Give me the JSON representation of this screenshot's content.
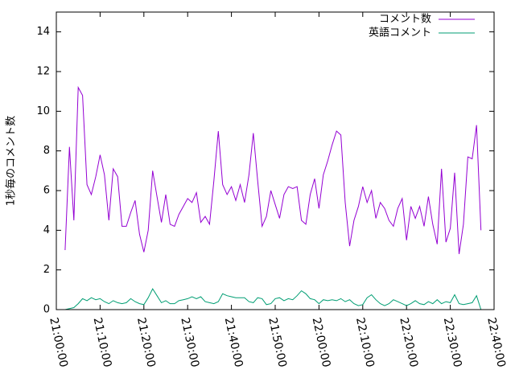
{
  "chart_data": {
    "type": "line",
    "ylabel": "1秒毎のコメント数",
    "x": [
      "21:02:00",
      "21:03:00",
      "21:04:00",
      "21:05:00",
      "21:06:00",
      "21:07:00",
      "21:08:00",
      "21:09:00",
      "21:10:00",
      "21:11:00",
      "21:12:00",
      "21:13:00",
      "21:14:00",
      "21:15:00",
      "21:16:00",
      "21:17:00",
      "21:18:00",
      "21:19:00",
      "21:20:00",
      "21:21:00",
      "21:22:00",
      "21:23:00",
      "21:24:00",
      "21:25:00",
      "21:26:00",
      "21:27:00",
      "21:28:00",
      "21:29:00",
      "21:30:00",
      "21:31:00",
      "21:32:00",
      "21:33:00",
      "21:34:00",
      "21:35:00",
      "21:36:00",
      "21:37:00",
      "21:38:00",
      "21:39:00",
      "21:40:00",
      "21:41:00",
      "21:42:00",
      "21:43:00",
      "21:44:00",
      "21:45:00",
      "21:46:00",
      "21:47:00",
      "21:48:00",
      "21:49:00",
      "21:50:00",
      "21:51:00",
      "21:52:00",
      "21:53:00",
      "21:54:00",
      "21:55:00",
      "21:56:00",
      "21:57:00",
      "21:58:00",
      "21:59:00",
      "22:00:00",
      "22:01:00",
      "22:02:00",
      "22:03:00",
      "22:04:00",
      "22:05:00",
      "22:06:00",
      "22:07:00",
      "22:08:00",
      "22:09:00",
      "22:10:00",
      "22:11:00",
      "22:12:00",
      "22:13:00",
      "22:14:00",
      "22:15:00",
      "22:16:00",
      "22:17:00",
      "22:18:00",
      "22:19:00",
      "22:20:00",
      "22:21:00",
      "22:22:00",
      "22:23:00",
      "22:24:00",
      "22:25:00",
      "22:26:00",
      "22:27:00",
      "22:28:00",
      "22:29:00",
      "22:30:00",
      "22:31:00",
      "22:32:00",
      "22:33:00",
      "22:34:00",
      "22:35:00",
      "22:36:00",
      "22:37:00"
    ],
    "series": [
      {
        "name": "コメント数",
        "color": "#9400d3",
        "values": [
          3.0,
          8.2,
          4.5,
          11.2,
          10.8,
          6.3,
          5.8,
          6.7,
          7.8,
          6.8,
          4.5,
          7.1,
          6.7,
          4.2,
          4.2,
          4.9,
          5.5,
          3.8,
          2.9,
          4.0,
          7.0,
          5.7,
          4.4,
          5.8,
          4.3,
          4.2,
          4.8,
          5.2,
          5.6,
          5.4,
          5.9,
          4.4,
          4.7,
          4.3,
          6.5,
          9.0,
          6.3,
          5.8,
          6.2,
          5.5,
          6.3,
          5.4,
          6.8,
          8.9,
          6.5,
          4.2,
          4.7,
          6.0,
          5.3,
          4.6,
          5.8,
          6.2,
          6.1,
          6.2,
          4.5,
          4.3,
          5.8,
          6.6,
          5.1,
          6.8,
          7.5,
          8.3,
          9.0,
          8.8,
          5.4,
          3.2,
          4.5,
          5.2,
          6.2,
          5.4,
          6.0,
          4.6,
          5.4,
          5.1,
          4.5,
          4.2,
          5.1,
          5.6,
          3.5,
          5.2,
          4.6,
          5.2,
          4.2,
          5.7,
          4.3,
          3.3,
          7.1,
          3.4,
          4.1,
          6.9,
          2.8,
          4.3,
          7.7,
          7.6,
          9.3,
          4.0
        ]
      },
      {
        "name": "英語コメント",
        "color": "#009e73",
        "values": [
          0,
          0.05,
          0.1,
          0.3,
          0.55,
          0.45,
          0.6,
          0.5,
          0.55,
          0.4,
          0.3,
          0.45,
          0.35,
          0.3,
          0.35,
          0.55,
          0.4,
          0.3,
          0.25,
          0.6,
          1.05,
          0.7,
          0.35,
          0.45,
          0.3,
          0.3,
          0.45,
          0.5,
          0.55,
          0.65,
          0.55,
          0.65,
          0.4,
          0.35,
          0.3,
          0.4,
          0.8,
          0.7,
          0.65,
          0.6,
          0.6,
          0.6,
          0.4,
          0.35,
          0.6,
          0.55,
          0.25,
          0.3,
          0.55,
          0.6,
          0.45,
          0.55,
          0.5,
          0.7,
          0.95,
          0.8,
          0.55,
          0.5,
          0.3,
          0.5,
          0.45,
          0.5,
          0.45,
          0.55,
          0.4,
          0.5,
          0.3,
          0.2,
          0.25,
          0.6,
          0.75,
          0.5,
          0.3,
          0.2,
          0.3,
          0.5,
          0.4,
          0.3,
          0.2,
          0.3,
          0.45,
          0.3,
          0.25,
          0.4,
          0.3,
          0.5,
          0.3,
          0.4,
          0.35,
          0.75,
          0.3,
          0.25,
          0.3,
          0.35,
          0.7,
          0.0
        ]
      }
    ],
    "xlim": [
      "21:00:00",
      "22:40:00"
    ],
    "xticks": [
      "21:00:00",
      "21:10:00",
      "21:20:00",
      "21:30:00",
      "21:40:00",
      "21:50:00",
      "22:00:00",
      "22:10:00",
      "22:20:00",
      "22:30:00",
      "22:40:00"
    ],
    "ylim": [
      0,
      15
    ],
    "yticks": [
      0,
      2,
      4,
      6,
      8,
      10,
      12,
      14
    ],
    "legend": "upper right"
  }
}
